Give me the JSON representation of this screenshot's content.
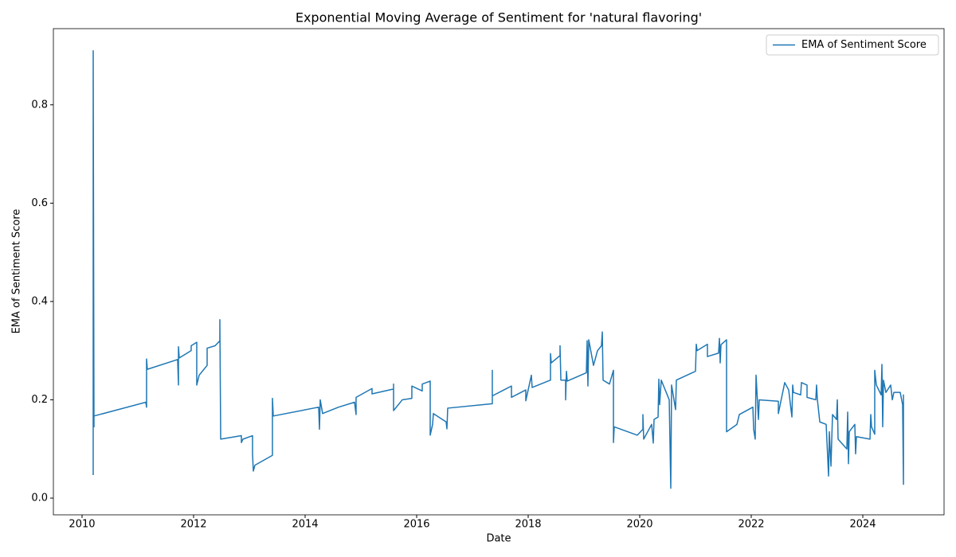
{
  "chart_data": {
    "type": "line",
    "title": "Exponential Moving Average of Sentiment for 'natural flavoring'",
    "xlabel": "Date",
    "ylabel": "EMA of Sentiment Score",
    "xlim": [
      2009.486,
      2025.457
    ],
    "ylim": [
      -0.034,
      0.955
    ],
    "xticks": [
      2010,
      2012,
      2014,
      2016,
      2018,
      2020,
      2022,
      2024
    ],
    "yticks": [
      {
        "value": 0,
        "label": "0.0"
      },
      0.2,
      0.4,
      0.6,
      0.8
    ],
    "grid": false,
    "legend": "upper right",
    "x": [
      2010.2,
      2010.2,
      2010.214,
      2010.214,
      2011.143,
      2011.157,
      2011.157,
      2011.171,
      2011.714,
      2011.729,
      2011.729,
      2011.743,
      2011.957,
      2011.957,
      2012.057,
      2012.057,
      2012.1,
      2012.243,
      2012.243,
      2012.386,
      2012.471,
      2012.471,
      2012.486,
      2012.857,
      2012.857,
      2012.886,
      2013.057,
      2013.057,
      2013.071,
      2013.1,
      2013.414,
      2013.414,
      2013.429,
      2014.243,
      2014.257,
      2014.271,
      2014.314,
      2014.6,
      2014.886,
      2014.914,
      2014.914,
      2015.2,
      2015.2,
      2015.586,
      2015.586,
      2015.586,
      2015.743,
      2015.914,
      2015.914,
      2016.1,
      2016.1,
      2016.243,
      2016.243,
      2016.286,
      2016.3,
      2016.529,
      2016.543,
      2016.557,
      2017.357,
      2017.357,
      2017.357,
      2017.7,
      2017.7,
      2017.957,
      2017.957,
      2018.057,
      2018.071,
      2018.4,
      2018.4,
      2018.414,
      2018.571,
      2018.571,
      2018.586,
      2018.671,
      2018.671,
      2018.686,
      2018.7,
      2019.043,
      2019.057,
      2019.071,
      2019.086,
      2019.171,
      2019.243,
      2019.314,
      2019.329,
      2019.343,
      2019.457,
      2019.529,
      2019.529,
      2019.543,
      2019.957,
      2020.057,
      2020.057,
      2020.071,
      2020.214,
      2020.243,
      2020.257,
      2020.329,
      2020.343,
      2020.357,
      2020.386,
      2020.529,
      2020.557,
      2020.571,
      2020.643,
      2020.657,
      2021,
      2021.014,
      2021.029,
      2021.214,
      2021.214,
      2021.414,
      2021.429,
      2021.443,
      2021.457,
      2021.557,
      2021.557,
      2021.743,
      2021.786,
      2022.029,
      2022.043,
      2022.071,
      2022.086,
      2022.129,
      2022.143,
      2022.486,
      2022.486,
      2022.6,
      2022.671,
      2022.729,
      2022.743,
      2022.757,
      2022.886,
      2022.9,
      2023,
      2023,
      2023.157,
      2023.171,
      2023.186,
      2023.229,
      2023.343,
      2023.386,
      2023.4,
      2023.429,
      2023.457,
      2023.529,
      2023.543,
      2023.557,
      2023.714,
      2023.729,
      2023.743,
      2023.757,
      2023.857,
      2023.871,
      2023.886,
      2024.129,
      2024.143,
      2024.157,
      2024.214,
      2024.214,
      2024.243,
      2024.329,
      2024.343,
      2024.357,
      2024.371,
      2024.414,
      2024.5,
      2024.529,
      2024.557,
      2024.671,
      2024.714,
      2024.729,
      2024.729,
      2024.729
    ],
    "series": [
      {
        "name": "EMA of Sentiment Score",
        "color": "#1f77b4",
        "values": [
          0.047,
          0.91,
          0.145,
          0.167,
          0.195,
          0.185,
          0.283,
          0.262,
          0.282,
          0.23,
          0.308,
          0.285,
          0.3,
          0.31,
          0.317,
          0.23,
          0.25,
          0.27,
          0.305,
          0.31,
          0.32,
          0.363,
          0.12,
          0.127,
          0.113,
          0.12,
          0.127,
          0.09,
          0.055,
          0.067,
          0.087,
          0.203,
          0.167,
          0.185,
          0.14,
          0.2,
          0.172,
          0.185,
          0.195,
          0.17,
          0.205,
          0.223,
          0.212,
          0.222,
          0.232,
          0.178,
          0.2,
          0.203,
          0.228,
          0.218,
          0.232,
          0.238,
          0.128,
          0.15,
          0.172,
          0.155,
          0.141,
          0.183,
          0.192,
          0.26,
          0.208,
          0.228,
          0.205,
          0.22,
          0.198,
          0.25,
          0.225,
          0.24,
          0.294,
          0.275,
          0.29,
          0.31,
          0.24,
          0.24,
          0.2,
          0.258,
          0.238,
          0.255,
          0.32,
          0.228,
          0.322,
          0.27,
          0.3,
          0.31,
          0.338,
          0.24,
          0.232,
          0.26,
          0.113,
          0.145,
          0.128,
          0.14,
          0.17,
          0.12,
          0.15,
          0.112,
          0.16,
          0.165,
          0.242,
          0.19,
          0.24,
          0.2,
          0.02,
          0.23,
          0.18,
          0.24,
          0.258,
          0.313,
          0.3,
          0.313,
          0.288,
          0.295,
          0.325,
          0.275,
          0.312,
          0.322,
          0.135,
          0.15,
          0.17,
          0.185,
          0.14,
          0.12,
          0.25,
          0.16,
          0.2,
          0.197,
          0.172,
          0.235,
          0.22,
          0.165,
          0.23,
          0.215,
          0.21,
          0.235,
          0.23,
          0.205,
          0.2,
          0.23,
          0.2,
          0.155,
          0.15,
          0.045,
          0.135,
          0.065,
          0.17,
          0.16,
          0.2,
          0.12,
          0.1,
          0.175,
          0.07,
          0.135,
          0.15,
          0.09,
          0.125,
          0.12,
          0.17,
          0.145,
          0.13,
          0.26,
          0.23,
          0.21,
          0.272,
          0.145,
          0.24,
          0.215,
          0.23,
          0.2,
          0.215,
          0.215,
          0.19,
          0.028,
          0.21,
          0.095
        ]
      }
    ]
  }
}
